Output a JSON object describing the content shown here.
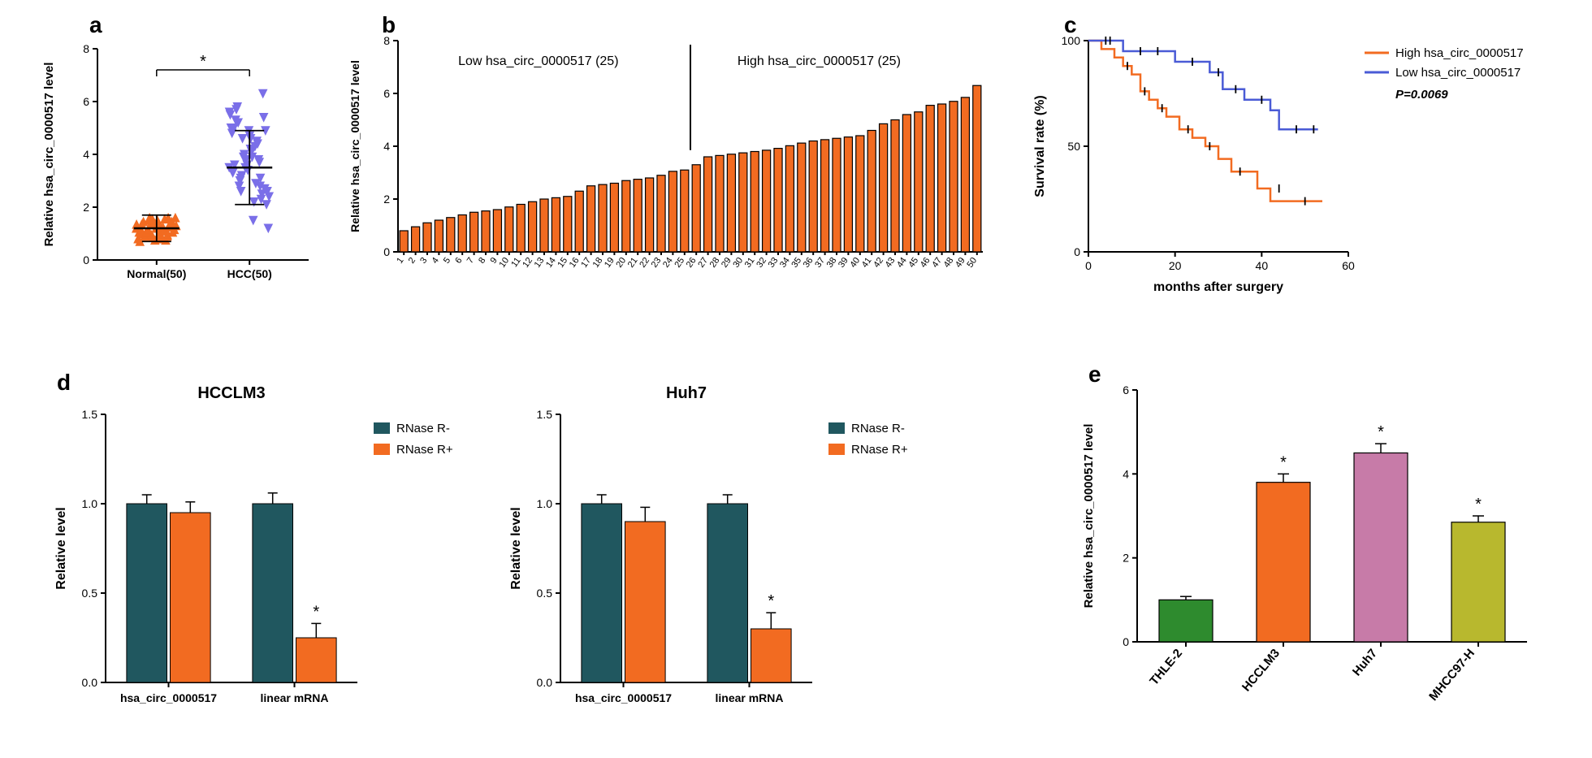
{
  "panelA": {
    "label": "a",
    "ylabel": "Relative hsa_circ_0000517 level",
    "ylim": [
      0,
      8
    ],
    "ytick_step": 2,
    "groups": [
      "Normal(50)",
      "HCC(50)"
    ],
    "normal": {
      "color": "#f26b21",
      "marker": "triangle-up",
      "mean": 1.2,
      "sd": 0.5,
      "points": [
        1.2,
        0.9,
        1.5,
        1.1,
        0.8,
        1.3,
        1.0,
        1.6,
        0.7,
        1.4,
        1.2,
        0.95,
        1.35,
        1.05,
        1.25,
        0.85,
        1.45,
        1.15,
        1.55,
        0.75,
        1.0,
        1.3,
        1.1,
        1.4,
        0.9,
        1.2,
        1.6,
        0.8,
        1.5,
        1.05,
        1.25,
        0.95,
        1.35,
        1.15,
        1.45,
        0.85,
        1.55,
        1.0,
        1.3,
        1.1,
        1.4,
        0.9,
        1.6,
        0.75,
        1.2,
        1.05,
        1.35,
        0.95,
        1.25,
        1.15
      ]
    },
    "hcc": {
      "color": "#7a6fe8",
      "marker": "triangle-down",
      "mean": 3.5,
      "sd": 1.4,
      "points": [
        3.5,
        2.8,
        4.2,
        3.1,
        5.0,
        2.5,
        3.9,
        4.6,
        3.3,
        5.4,
        2.2,
        4.0,
        3.6,
        4.9,
        2.9,
        3.8,
        5.7,
        2.6,
        4.4,
        3.4,
        5.2,
        2.4,
        3.7,
        4.7,
        3.0,
        5.5,
        2.3,
        4.1,
        3.2,
        4.8,
        6.3,
        1.5,
        3.9,
        5.0,
        2.7,
        4.3,
        3.5,
        5.3,
        2.1,
        4.5,
        3.6,
        5.8,
        1.2,
        3.8,
        4.9,
        2.8,
        5.6,
        3.1,
        4.6,
        2.6
      ]
    },
    "sig": "*",
    "background_color": "#ffffff"
  },
  "panelB": {
    "label": "b",
    "ylabel": "Relative hsa_circ_0000517 level",
    "ylim": [
      0,
      8
    ],
    "ytick_step": 2,
    "annotations": {
      "low": "Low hsa_circ_0000517 (25)",
      "high": "High hsa_circ_0000517 (25)"
    },
    "bar_color": "#f26b21",
    "bar_border": "#000000",
    "bar_width": 0.7,
    "values": [
      0.8,
      0.95,
      1.1,
      1.2,
      1.3,
      1.4,
      1.5,
      1.55,
      1.6,
      1.7,
      1.8,
      1.9,
      2.0,
      2.05,
      2.1,
      2.3,
      2.5,
      2.55,
      2.6,
      2.7,
      2.75,
      2.8,
      2.9,
      3.05,
      3.1,
      3.3,
      3.6,
      3.65,
      3.7,
      3.75,
      3.8,
      3.85,
      3.92,
      4.02,
      4.12,
      4.2,
      4.25,
      4.3,
      4.35,
      4.4,
      4.6,
      4.85,
      5.0,
      5.2,
      5.3,
      5.55,
      5.6,
      5.7,
      5.85,
      6.3
    ],
    "divider_x": 25.5
  },
  "panelC": {
    "label": "c",
    "ylabel": "Survival rate (%)",
    "xlabel": "months after surgery",
    "ylim": [
      0,
      100
    ],
    "ytick_step": 50,
    "xlim": [
      0,
      60
    ],
    "xtick_step": 20,
    "legend": {
      "high": {
        "label": "High hsa_circ_0000517",
        "color": "#f26b21"
      },
      "low": {
        "label": "Low hsa_circ_0000517",
        "color": "#4a5bd6"
      }
    },
    "pvalue": "P=0.0069",
    "high_curve": [
      [
        0,
        100
      ],
      [
        3,
        100
      ],
      [
        3,
        96
      ],
      [
        6,
        96
      ],
      [
        6,
        92
      ],
      [
        8,
        92
      ],
      [
        8,
        88
      ],
      [
        10,
        88
      ],
      [
        10,
        84
      ],
      [
        12,
        84
      ],
      [
        12,
        76
      ],
      [
        14,
        76
      ],
      [
        14,
        72
      ],
      [
        16,
        72
      ],
      [
        16,
        68
      ],
      [
        18,
        68
      ],
      [
        18,
        64
      ],
      [
        21,
        64
      ],
      [
        21,
        58
      ],
      [
        24,
        58
      ],
      [
        24,
        54
      ],
      [
        27,
        54
      ],
      [
        27,
        50
      ],
      [
        30,
        50
      ],
      [
        30,
        44
      ],
      [
        33,
        44
      ],
      [
        33,
        38
      ],
      [
        39,
        38
      ],
      [
        39,
        30
      ],
      [
        42,
        30
      ],
      [
        42,
        24
      ],
      [
        54,
        24
      ]
    ],
    "low_curve": [
      [
        0,
        100
      ],
      [
        8,
        100
      ],
      [
        8,
        95
      ],
      [
        20,
        95
      ],
      [
        20,
        90
      ],
      [
        28,
        90
      ],
      [
        28,
        85
      ],
      [
        31,
        85
      ],
      [
        31,
        77
      ],
      [
        36,
        77
      ],
      [
        36,
        72
      ],
      [
        42,
        72
      ],
      [
        42,
        67
      ],
      [
        44,
        67
      ],
      [
        44,
        58
      ],
      [
        53,
        58
      ]
    ],
    "censor_high": [
      [
        5,
        100
      ],
      [
        9,
        88
      ],
      [
        13,
        76
      ],
      [
        17,
        68
      ],
      [
        23,
        58
      ],
      [
        28,
        50
      ],
      [
        35,
        38
      ],
      [
        44,
        30
      ],
      [
        50,
        24
      ]
    ],
    "censor_low": [
      [
        4,
        100
      ],
      [
        12,
        95
      ],
      [
        16,
        95
      ],
      [
        24,
        90
      ],
      [
        30,
        85
      ],
      [
        34,
        77
      ],
      [
        40,
        72
      ],
      [
        48,
        58
      ],
      [
        52,
        58
      ]
    ]
  },
  "panelD": {
    "label": "d",
    "sub": [
      {
        "title": "HCCLM3",
        "ylabel": "Relative level",
        "ylim": [
          0,
          1.5
        ],
        "ytick_step": 0.5,
        "groups": [
          "hsa_circ_0000517",
          "linear mRNA"
        ],
        "legend": {
          "rneg": {
            "label": "RNase R-",
            "color": "#20575f"
          },
          "rpos": {
            "label": "RNase R+",
            "color": "#f26b21"
          }
        },
        "values": {
          "circ": {
            "rneg": 1.0,
            "rneg_err": 0.05,
            "rpos": 0.95,
            "rpos_err": 0.06
          },
          "linear": {
            "rneg": 1.0,
            "rneg_err": 0.06,
            "rpos": 0.25,
            "rpos_err": 0.08
          }
        },
        "sig_pos": [
          [
            "linear",
            "rpos",
            "*"
          ]
        ]
      },
      {
        "title": "Huh7",
        "ylabel": "Relative level",
        "ylim": [
          0,
          1.5
        ],
        "ytick_step": 0.5,
        "groups": [
          "hsa_circ_0000517",
          "linear mRNA"
        ],
        "legend": {
          "rneg": {
            "label": "RNase R-",
            "color": "#20575f"
          },
          "rpos": {
            "label": "RNase R+",
            "color": "#f26b21"
          }
        },
        "values": {
          "circ": {
            "rneg": 1.0,
            "rneg_err": 0.05,
            "rpos": 0.9,
            "rpos_err": 0.08
          },
          "linear": {
            "rneg": 1.0,
            "rneg_err": 0.05,
            "rpos": 0.3,
            "rpos_err": 0.09
          }
        },
        "sig_pos": [
          [
            "linear",
            "rpos",
            "*"
          ]
        ]
      }
    ]
  },
  "panelE": {
    "label": "e",
    "ylabel": "Relative hsa_circ_0000517 level",
    "ylim": [
      0,
      6
    ],
    "ytick_step": 2,
    "bars": [
      {
        "label": "THLE-2",
        "value": 1.0,
        "err": 0.08,
        "color": "#2e8b2e",
        "sig": null
      },
      {
        "label": "HCCLM3",
        "value": 3.8,
        "err": 0.2,
        "color": "#f26b21",
        "sig": "*"
      },
      {
        "label": "Huh7",
        "value": 4.5,
        "err": 0.22,
        "color": "#c77ba8",
        "sig": "*"
      },
      {
        "label": "MHCC97-H",
        "value": 2.85,
        "err": 0.15,
        "color": "#b8b82e",
        "sig": "*"
      }
    ]
  },
  "colors": {
    "axis": "#000000",
    "text": "#000000"
  }
}
